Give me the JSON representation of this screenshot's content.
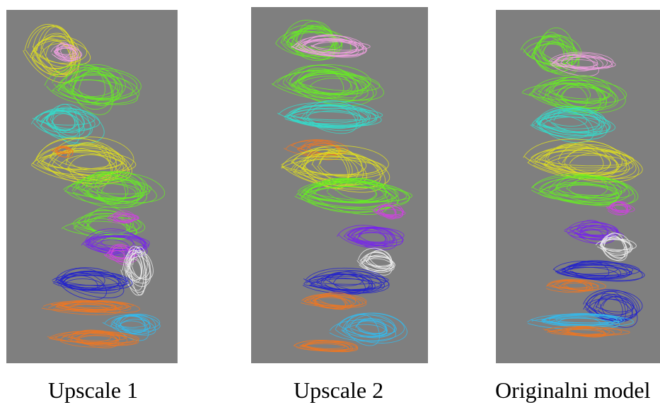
{
  "panels": [
    {
      "id": "p1",
      "caption": "Upscale 1"
    },
    {
      "id": "p2",
      "caption": "Upscale 2"
    },
    {
      "id": "p3",
      "caption": "Originalni model"
    }
  ],
  "colors": {
    "background": "#7f7f7f",
    "pink": "#f0a0e0",
    "green": "#66ee22",
    "cyan": "#33ddcc",
    "yellow": "#dddd22",
    "orange": "#ee7722",
    "magenta": "#cc44dd",
    "purple": "#7722ee",
    "white": "#eeeeee",
    "blue": "#2222cc",
    "skyblue": "#33bbee"
  }
}
